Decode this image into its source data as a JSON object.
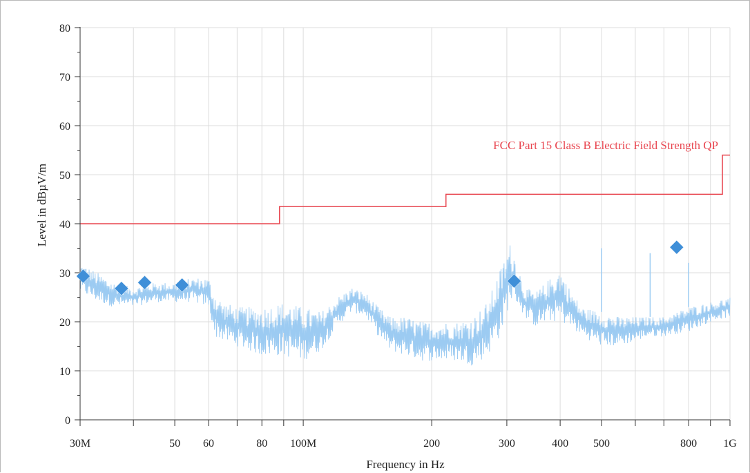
{
  "chart_data": {
    "type": "line",
    "title": "",
    "xlabel": "Frequency in Hz",
    "ylabel": "Level in dBµV/m",
    "x_scale": "log",
    "xlim": [
      30000000,
      1000000000
    ],
    "ylim": [
      0,
      80
    ],
    "grid": true,
    "y_ticks": [
      0,
      10,
      20,
      30,
      40,
      50,
      60,
      70,
      80
    ],
    "x_tick_labels": [
      {
        "value": 30000000,
        "label": "30M"
      },
      {
        "value": 50000000,
        "label": "50"
      },
      {
        "value": 60000000,
        "label": "60"
      },
      {
        "value": 80000000,
        "label": "80"
      },
      {
        "value": 100000000,
        "label": "100M"
      },
      {
        "value": 200000000,
        "label": "200"
      },
      {
        "value": 300000000,
        "label": "300"
      },
      {
        "value": 400000000,
        "label": "400"
      },
      {
        "value": 500000000,
        "label": "500"
      },
      {
        "value": 800000000,
        "label": "800"
      },
      {
        "value": 1000000000,
        "label": "1G"
      }
    ],
    "x_minor_ticks": [
      40000000,
      70000000,
      90000000,
      600000000,
      700000000,
      900000000
    ],
    "colors": {
      "limit": "#e8454f",
      "trace": "#9ccbf2",
      "markers": "#3f8fd8",
      "grid": "#dcdcdc"
    },
    "limit_line": {
      "name": "FCC Part 15 Class B Electric Field Strength QP",
      "x": [
        30000000,
        88000000,
        88000000,
        216000000,
        216000000,
        960000000,
        960000000,
        1000000000
      ],
      "y": [
        40,
        40,
        43.5,
        43.5,
        46,
        46,
        54,
        54
      ]
    },
    "trace_envelope": {
      "x": [
        30000000,
        33000000,
        36000000,
        40000000,
        45000000,
        50000000,
        55000000,
        60000000,
        62000000,
        65000000,
        70000000,
        80000000,
        90000000,
        100000000,
        110000000,
        120000000,
        130000000,
        140000000,
        150000000,
        160000000,
        175000000,
        190000000,
        210000000,
        230000000,
        250000000,
        270000000,
        290000000,
        305000000,
        315000000,
        330000000,
        350000000,
        380000000,
        400000000,
        420000000,
        450000000,
        500000000,
        550000000,
        600000000,
        650000000,
        700000000,
        800000000,
        900000000,
        1000000000
      ],
      "upper": [
        32,
        30,
        28,
        27,
        28,
        28,
        29,
        29,
        26,
        24,
        23,
        23,
        24,
        23,
        22,
        25,
        27,
        26,
        23,
        21,
        21,
        20,
        20,
        20,
        21,
        24,
        31,
        36,
        33,
        27,
        26,
        29,
        31,
        27,
        23,
        22,
        21,
        21,
        21,
        21,
        23,
        24,
        25
      ],
      "lower": [
        26,
        24,
        23,
        23,
        24,
        24,
        24,
        23,
        17,
        16,
        15,
        13,
        13,
        12,
        14,
        19,
        22,
        21,
        17,
        14,
        13,
        12,
        12,
        12,
        11,
        13,
        17,
        24,
        24,
        21,
        19,
        20,
        20,
        19,
        17,
        15,
        15,
        16,
        17,
        17,
        18,
        20,
        21
      ]
    },
    "spikes": [
      {
        "x": 500000000,
        "y": 35
      },
      {
        "x": 650000000,
        "y": 34
      },
      {
        "x": 800000000,
        "y": 32
      }
    ],
    "markers": {
      "x": [
        30500000,
        37500000,
        42500000,
        52000000,
        312000000,
        750000000
      ],
      "y": [
        29.3,
        26.8,
        28.0,
        27.5,
        28.3,
        35.2
      ]
    }
  }
}
